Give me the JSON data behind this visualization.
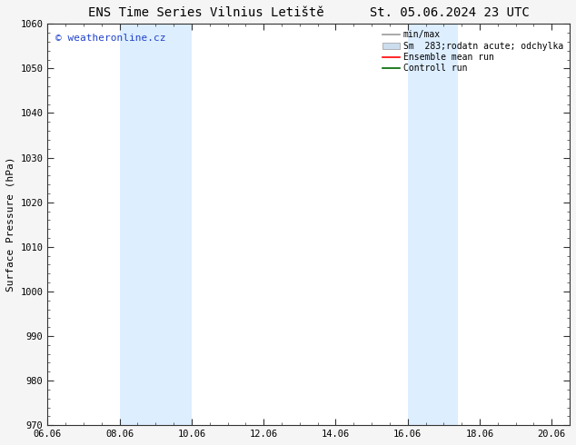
{
  "title_left": "ENS Time Series Vilnius Letiště",
  "title_right": "St. 05.06.2024 23 UTC",
  "ylabel": "Surface Pressure (hPa)",
  "ylim": [
    970,
    1060
  ],
  "yticks": [
    970,
    980,
    990,
    1000,
    1010,
    1020,
    1030,
    1040,
    1050,
    1060
  ],
  "xtick_labels": [
    "06.06",
    "08.06",
    "10.06",
    "12.06",
    "14.06",
    "16.06",
    "18.06",
    "20.06"
  ],
  "xtick_positions": [
    0,
    2,
    4,
    6,
    8,
    10,
    12,
    14
  ],
  "shaded_regions": [
    {
      "x_start": 2,
      "x_end": 4
    },
    {
      "x_start": 10,
      "x_end": 11.4
    }
  ],
  "shaded_color": "#ddeeff",
  "background_color": "#f5f5f5",
  "plot_bg_color": "#ffffff",
  "watermark_text": "© weatheronline.cz",
  "watermark_color": "#2244cc",
  "legend_labels": [
    "min/max",
    "Sm  283;rodatn acute; odchylka",
    "Ensemble mean run",
    "Controll run"
  ],
  "legend_colors": [
    "#999999",
    "#ccddee",
    "#ff0000",
    "#006600"
  ],
  "title_fontsize": 10,
  "axis_label_fontsize": 8,
  "tick_fontsize": 7.5
}
